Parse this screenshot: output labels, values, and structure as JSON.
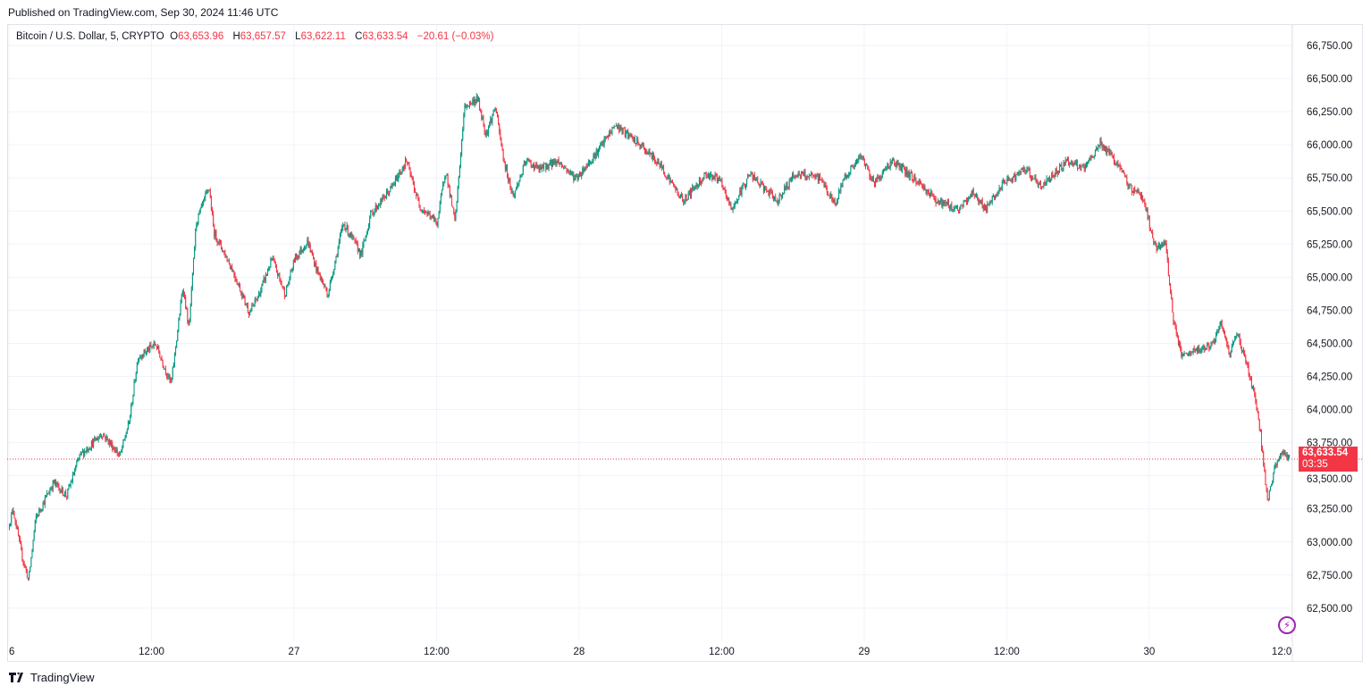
{
  "published": "Published on TradingView.com, Sep 30, 2024 11:46 UTC",
  "legend": {
    "symbol": "Bitcoin / U.S. Dollar, 5, CRYPTO",
    "o_label": "O",
    "open": "63,653.96",
    "h_label": "H",
    "high": "63,657.57",
    "l_label": "L",
    "low": "63,622.11",
    "c_label": "C",
    "close": "63,633.54",
    "change": "−20.61 (−0.03%)"
  },
  "last_price": {
    "value": "63,633.54",
    "countdown": "03:35"
  },
  "footer": {
    "brand": "TradingView"
  },
  "colors": {
    "up": "#089981",
    "down": "#f23645",
    "grid": "#f0f3fa",
    "accent": "#9c27b0"
  },
  "chart_data": {
    "type": "candlestick",
    "title": "Bitcoin / U.S. Dollar, 5, CRYPTO",
    "interval_minutes": 5,
    "x_unit": "hours since Sep 26 00:00 UTC",
    "ylim": [
      62300,
      66900
    ],
    "y_ticks": [
      62500,
      62750,
      63000,
      63250,
      63500,
      63750,
      64000,
      64250,
      64500,
      64750,
      65000,
      65250,
      65500,
      65750,
      66000,
      66250,
      66500,
      66750
    ],
    "y_tick_labels": [
      "62,500.00",
      "62,750.00",
      "63,000.00",
      "63,250.00",
      "63,500.00",
      "63,750.00",
      "64,000.00",
      "64,250.00",
      "64,500.00",
      "64,750.00",
      "65,000.00",
      "65,250.00",
      "65,500.00",
      "65,750.00",
      "66,000.00",
      "66,250.00",
      "66,500.00",
      "66,750.00"
    ],
    "x_ticks": [
      0,
      12,
      24,
      36,
      48,
      60,
      72,
      84,
      96,
      108
    ],
    "x_tick_labels": [
      "6",
      "12:00",
      "27",
      "12:00",
      "28",
      "12:00",
      "29",
      "12:00",
      "30",
      "12:0"
    ],
    "last_price": 63633.54,
    "grid": true,
    "price_path": [
      [
        0,
        63113
      ],
      [
        0.4,
        63248
      ],
      [
        1.1,
        62910
      ],
      [
        1.7,
        62710
      ],
      [
        2.3,
        63180
      ],
      [
        3.8,
        63450
      ],
      [
        4.9,
        63350
      ],
      [
        6.0,
        63650
      ],
      [
        7.9,
        63820
      ],
      [
        9.4,
        63650
      ],
      [
        10.2,
        63920
      ],
      [
        10.9,
        64395
      ],
      [
        12.4,
        64495
      ],
      [
        13.7,
        64190
      ],
      [
        14.7,
        64935
      ],
      [
        15.2,
        64600
      ],
      [
        15.8,
        65410
      ],
      [
        16.9,
        65680
      ],
      [
        17.3,
        65340
      ],
      [
        18.8,
        65070
      ],
      [
        20.3,
        64730
      ],
      [
        21.1,
        64870
      ],
      [
        22.2,
        65140
      ],
      [
        23.3,
        64870
      ],
      [
        24.1,
        65140
      ],
      [
        25.2,
        65270
      ],
      [
        25.9,
        65070
      ],
      [
        26.9,
        64870
      ],
      [
        28.2,
        65410
      ],
      [
        29.7,
        65170
      ],
      [
        30.5,
        65475
      ],
      [
        32.3,
        65680
      ],
      [
        33.5,
        65880
      ],
      [
        34.6,
        65540
      ],
      [
        36.1,
        65410
      ],
      [
        36.8,
        65815
      ],
      [
        37.6,
        65410
      ],
      [
        38.4,
        66285
      ],
      [
        39.5,
        66350
      ],
      [
        40.2,
        66080
      ],
      [
        41.0,
        66285
      ],
      [
        41.7,
        65880
      ],
      [
        42.5,
        65610
      ],
      [
        43.6,
        65880
      ],
      [
        44.7,
        65815
      ],
      [
        46.2,
        65880
      ],
      [
        47.8,
        65745
      ],
      [
        49.6,
        65950
      ],
      [
        51.1,
        66150
      ],
      [
        53.4,
        65980
      ],
      [
        54.9,
        65845
      ],
      [
        56.8,
        65575
      ],
      [
        58.7,
        65780
      ],
      [
        59.8,
        65745
      ],
      [
        60.9,
        65510
      ],
      [
        62.4,
        65780
      ],
      [
        64.7,
        65575
      ],
      [
        66.2,
        65780
      ],
      [
        68.4,
        65745
      ],
      [
        69.6,
        65540
      ],
      [
        70.3,
        65745
      ],
      [
        71.8,
        65915
      ],
      [
        72.9,
        65710
      ],
      [
        74.4,
        65880
      ],
      [
        76.7,
        65710
      ],
      [
        78.2,
        65575
      ],
      [
        80.1,
        65510
      ],
      [
        81.2,
        65645
      ],
      [
        82.3,
        65510
      ],
      [
        83.8,
        65710
      ],
      [
        85.7,
        65815
      ],
      [
        86.9,
        65680
      ],
      [
        89.1,
        65880
      ],
      [
        90.6,
        65815
      ],
      [
        91.9,
        66015
      ],
      [
        93.2,
        65880
      ],
      [
        94.4,
        65680
      ],
      [
        95.5,
        65610
      ],
      [
        96.6,
        65205
      ],
      [
        97.4,
        65270
      ],
      [
        98.1,
        64665
      ],
      [
        98.8,
        64395
      ],
      [
        100.4,
        64460
      ],
      [
        101.5,
        64495
      ],
      [
        102.1,
        64665
      ],
      [
        102.8,
        64395
      ],
      [
        103.4,
        64600
      ],
      [
        104.5,
        64260
      ],
      [
        105.2,
        63990
      ],
      [
        106.0,
        63315
      ],
      [
        106.7,
        63585
      ],
      [
        107.3,
        63685
      ],
      [
        107.75,
        63633.54
      ]
    ]
  }
}
